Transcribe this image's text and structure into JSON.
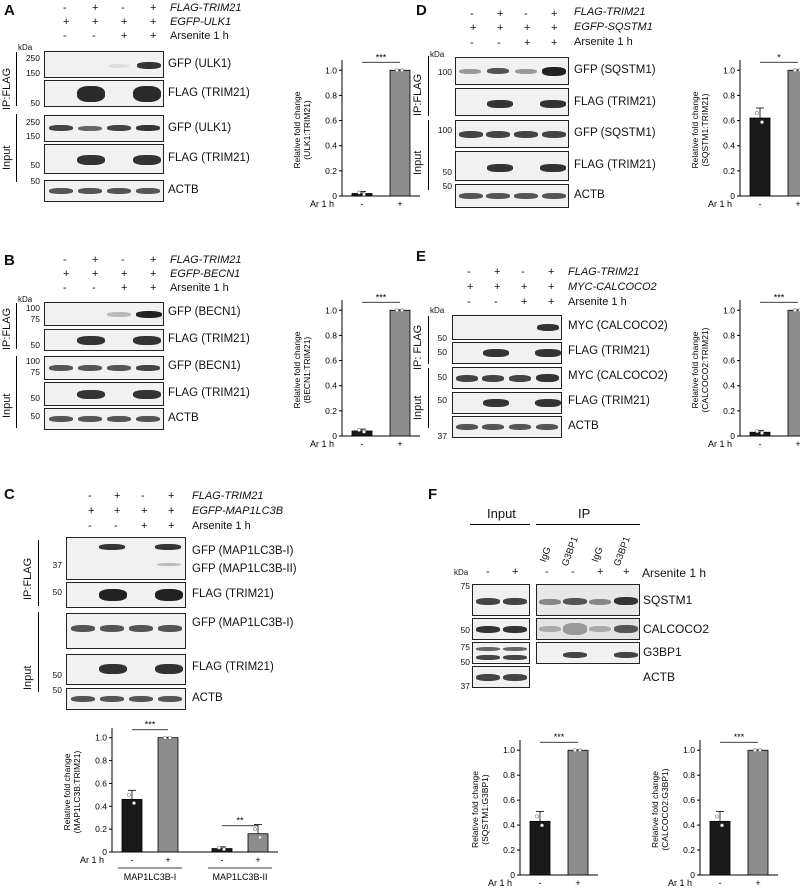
{
  "panel_labels": [
    "A",
    "B",
    "C",
    "D",
    "E",
    "F"
  ],
  "A": {
    "rows": [
      {
        "label": "FLAG-TRIM21",
        "italic": true,
        "signs": [
          "-",
          "+",
          "-",
          "+"
        ]
      },
      {
        "label": "EGFP-ULK1",
        "italic": true,
        "signs": [
          "+",
          "+",
          "+",
          "+"
        ]
      },
      {
        "label": "Arsenite 1 h",
        "italic": false,
        "signs": [
          "-",
          "-",
          "+",
          "+"
        ]
      }
    ],
    "side_labels": [
      "IP:FLAG",
      "Input"
    ],
    "kda": "kDa",
    "blots": [
      {
        "label": "GFP (ULK1)",
        "mw": [
          "250",
          "150"
        ]
      },
      {
        "label": "FLAG (TRIM21)",
        "mw": [
          "50"
        ]
      },
      {
        "label": "GFP (ULK1)",
        "mw": [
          "250",
          "150"
        ]
      },
      {
        "label": "FLAG (TRIM21)",
        "mw": [
          "50"
        ]
      },
      {
        "label": "ACTB",
        "mw": [
          "50"
        ]
      }
    ]
  },
  "B": {
    "rows": [
      {
        "label": "FLAG-TRIM21",
        "italic": true,
        "signs": [
          "-",
          "+",
          "-",
          "+"
        ]
      },
      {
        "label": "EGFP-BECN1",
        "italic": true,
        "signs": [
          "+",
          "+",
          "+",
          "+"
        ]
      },
      {
        "label": "Arsenite 1 h",
        "italic": false,
        "signs": [
          "-",
          "-",
          "+",
          "+"
        ]
      }
    ],
    "side_labels": [
      "IP:FLAG",
      "Input"
    ],
    "kda": "kDa",
    "blots": [
      {
        "label": "GFP (BECN1)",
        "mw": [
          "100",
          "75"
        ]
      },
      {
        "label": "FLAG (TRIM21)",
        "mw": [
          "50"
        ]
      },
      {
        "label": "GFP (BECN1)",
        "mw": [
          "100",
          "75"
        ]
      },
      {
        "label": "FLAG (TRIM21)",
        "mw": [
          "50"
        ]
      },
      {
        "label": "ACTB",
        "mw": [
          "50"
        ]
      }
    ]
  },
  "C": {
    "rows": [
      {
        "label": "FLAG-TRIM21",
        "italic": true,
        "signs": [
          "-",
          "+",
          "-",
          "+"
        ]
      },
      {
        "label": "EGFP-MAP1LC3B",
        "italic": true,
        "signs": [
          "+",
          "+",
          "+",
          "+"
        ]
      },
      {
        "label": "Arsenite 1 h",
        "italic": false,
        "signs": [
          "-",
          "-",
          "+",
          "+"
        ]
      }
    ],
    "side_labels": [
      "IP:FLAG",
      "Input"
    ],
    "blots": [
      {
        "label": "GFP (MAP1LC3B-I)",
        "label2": "GFP (MAP1LC3B-II)",
        "mw": [
          "37"
        ]
      },
      {
        "label": "FLAG (TRIM21)",
        "mw": [
          "50"
        ]
      },
      {
        "label": "GFP (MAP1LC3B-I)",
        "mw": []
      },
      {
        "label": "FLAG (TRIM21)",
        "mw": [
          "50"
        ]
      },
      {
        "label": "ACTB",
        "mw": [
          "50"
        ]
      }
    ]
  },
  "D": {
    "rows": [
      {
        "label": "FLAG-TRIM21",
        "italic": true,
        "signs": [
          "-",
          "+",
          "-",
          "+"
        ]
      },
      {
        "label": "EGFP-SQSTM1",
        "italic": true,
        "signs": [
          "+",
          "+",
          "+",
          "+"
        ]
      },
      {
        "label": "Arsenite 1 h",
        "italic": false,
        "signs": [
          "-",
          "-",
          "+",
          "+"
        ]
      }
    ],
    "side_labels": [
      "IP:FLAG",
      "Input"
    ],
    "kda": "kDa",
    "blots": [
      {
        "label": "GFP (SQSTM1)",
        "mw": [
          "100"
        ]
      },
      {
        "label": "FLAG (TRIM21)",
        "mw": [
          "50"
        ]
      },
      {
        "label": "GFP (SQSTM1)",
        "mw": [
          "100"
        ]
      },
      {
        "label": "FLAG (TRIM21)",
        "mw": [
          "50"
        ]
      },
      {
        "label": "ACTB",
        "mw": [
          "50"
        ]
      }
    ]
  },
  "E": {
    "rows": [
      {
        "label": "FLAG-TRIM21",
        "italic": true,
        "signs": [
          "-",
          "+",
          "-",
          "+"
        ]
      },
      {
        "label": "MYC-CALCOCO2",
        "italic": true,
        "signs": [
          "+",
          "+",
          "+",
          "+"
        ]
      },
      {
        "label": "Arsenite 1 h",
        "italic": false,
        "signs": [
          "-",
          "-",
          "+",
          "+"
        ]
      }
    ],
    "side_labels": [
      "IP: FLAG",
      "Input"
    ],
    "kda": "kDa",
    "blots": [
      {
        "label": "MYC (CALCOCO2)",
        "mw": [
          "50"
        ]
      },
      {
        "label": "FLAG (TRIM21)",
        "mw": [
          "50"
        ]
      },
      {
        "label": "MYC (CALCOCO2)",
        "mw": [
          "50"
        ]
      },
      {
        "label": "FLAG (TRIM21)",
        "mw": [
          "50"
        ]
      },
      {
        "label": "ACTB",
        "mw": [
          "37"
        ]
      }
    ]
  },
  "F": {
    "headers": [
      "Input",
      "IP"
    ],
    "lane_labels": [
      "IgG",
      "G3BP1",
      "IgG",
      "G3BP1"
    ],
    "kda": "kDa",
    "signs": [
      "-",
      "+",
      "-",
      "-",
      "+",
      "+"
    ],
    "arsenite": "Arsenite 1 h",
    "blots": [
      {
        "label": "SQSTM1",
        "mw": [
          "75"
        ]
      },
      {
        "label": "CALCOCO2",
        "mw": [
          "50"
        ]
      },
      {
        "label": "G3BP1",
        "mw": [
          "75",
          "50"
        ]
      },
      {
        "label": "ACTB",
        "mw": [
          "37"
        ]
      }
    ]
  },
  "chart_data": [
    {
      "id": "A",
      "type": "bar",
      "ylabel": "Relative fold change (ULK1:TRIM21)",
      "xlabel": "Ar 1 h",
      "categories": [
        "-",
        "+"
      ],
      "values": [
        0.02,
        1.0
      ],
      "ylim": [
        0,
        1.05
      ],
      "yticks": [
        "0",
        "0.2",
        "0.4",
        "0.6",
        "0.8",
        "1.0"
      ],
      "sig": "***",
      "colors": [
        "#1a1a1a",
        "#8c8c8c"
      ]
    },
    {
      "id": "B",
      "type": "bar",
      "ylabel": "Relative fold change (BECN1:TRIM21)",
      "xlabel": "Ar 1 h",
      "categories": [
        "-",
        "+"
      ],
      "values": [
        0.04,
        1.0
      ],
      "ylim": [
        0,
        1.05
      ],
      "yticks": [
        "0",
        "0.2",
        "0.4",
        "0.6",
        "0.8",
        "1.0"
      ],
      "sig": "***",
      "colors": [
        "#1a1a1a",
        "#8c8c8c"
      ]
    },
    {
      "id": "C",
      "type": "bar",
      "ylabel": "Relative fold change (MAP1LC3B:TRIM21)",
      "xlabel": "Ar 1 h",
      "groups": [
        "MAP1LC3B-I",
        "MAP1LC3B-II"
      ],
      "categories": [
        "-",
        "+",
        "-",
        "+"
      ],
      "values": [
        0.46,
        1.0,
        0.03,
        0.16
      ],
      "ylim": [
        0,
        1.05
      ],
      "yticks": [
        "0",
        "0.2",
        "0.4",
        "0.6",
        "0.8",
        "1.0"
      ],
      "sig": [
        "***",
        "**"
      ],
      "colors": [
        "#1a1a1a",
        "#8c8c8c"
      ]
    },
    {
      "id": "D",
      "type": "bar",
      "ylabel": "Relative fold change (SQSTM1:TRIM21)",
      "xlabel": "Ar 1 h",
      "categories": [
        "-",
        "+"
      ],
      "values": [
        0.62,
        1.0
      ],
      "ylim": [
        0,
        1.05
      ],
      "yticks": [
        "0",
        "0.2",
        "0.4",
        "0.6",
        "0.8",
        "1.0"
      ],
      "sig": "*",
      "colors": [
        "#1a1a1a",
        "#8c8c8c"
      ]
    },
    {
      "id": "E",
      "type": "bar",
      "ylabel": "Relative fold change (CALCOCO2:TRIM21)",
      "xlabel": "Ar 1 h",
      "categories": [
        "-",
        "+"
      ],
      "values": [
        0.03,
        1.0
      ],
      "ylim": [
        0,
        1.05
      ],
      "yticks": [
        "0",
        "0.2",
        "0.4",
        "0.6",
        "0.8",
        "1.0"
      ],
      "sig": "***",
      "colors": [
        "#1a1a1a",
        "#8c8c8c"
      ]
    },
    {
      "id": "F1",
      "type": "bar",
      "ylabel": "Relative fold change (SQSTM1:G3BP1)",
      "xlabel": "Ar 1 h",
      "categories": [
        "-",
        "+"
      ],
      "values": [
        0.43,
        1.0
      ],
      "ylim": [
        0,
        1.05
      ],
      "yticks": [
        "0",
        "0.2",
        "0.4",
        "0.6",
        "0.8",
        "1.0"
      ],
      "sig": "***",
      "colors": [
        "#1a1a1a",
        "#8c8c8c"
      ]
    },
    {
      "id": "F2",
      "type": "bar",
      "ylabel": "Relative fold change (CALCOCO2:G3BP1)",
      "xlabel": "Ar 1 h",
      "categories": [
        "-",
        "+"
      ],
      "values": [
        0.43,
        1.0
      ],
      "ylim": [
        0,
        1.05
      ],
      "yticks": [
        "0",
        "0.2",
        "0.4",
        "0.6",
        "0.8",
        "1.0"
      ],
      "sig": "***",
      "colors": [
        "#1a1a1a",
        "#8c8c8c"
      ]
    }
  ]
}
